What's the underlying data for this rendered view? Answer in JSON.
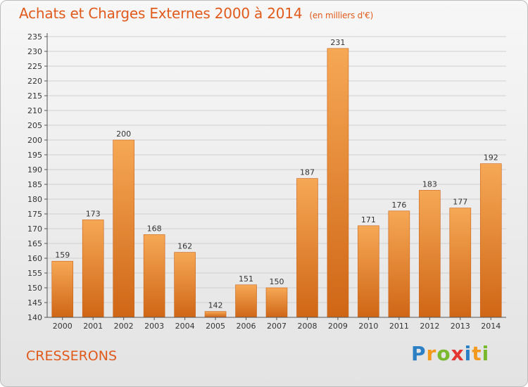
{
  "title": "Achats et Charges Externes 2000 à 2014",
  "subtitle": "(en milliers d'€)",
  "town": "CRESSERONS",
  "logo": {
    "letters": [
      "P",
      "r",
      "o",
      "x",
      "i",
      "t",
      "i"
    ],
    "colors": [
      "#2b7fc4",
      "#f39a1e",
      "#7ab92e",
      "#e3342f",
      "#2b7fc4",
      "#f39a1e",
      "#7ab92e"
    ]
  },
  "chart_data": {
    "type": "bar",
    "title": "Achats et Charges Externes 2000 à 2014",
    "xlabel": "",
    "ylabel": "",
    "categories": [
      "2000",
      "2001",
      "2002",
      "2003",
      "2004",
      "2005",
      "2006",
      "2007",
      "2008",
      "2009",
      "2010",
      "2011",
      "2012",
      "2013",
      "2014"
    ],
    "values": [
      159,
      173,
      200,
      168,
      162,
      142,
      151,
      150,
      187,
      231,
      171,
      176,
      183,
      177,
      192
    ],
    "ylim": [
      140,
      235
    ],
    "yticks": [
      140,
      145,
      150,
      155,
      160,
      165,
      170,
      175,
      180,
      185,
      190,
      195,
      200,
      205,
      210,
      215,
      220,
      225,
      230,
      235
    ],
    "grid": true,
    "bar_color_top": "#f6a855",
    "bar_color_bottom": "#cf6616"
  }
}
